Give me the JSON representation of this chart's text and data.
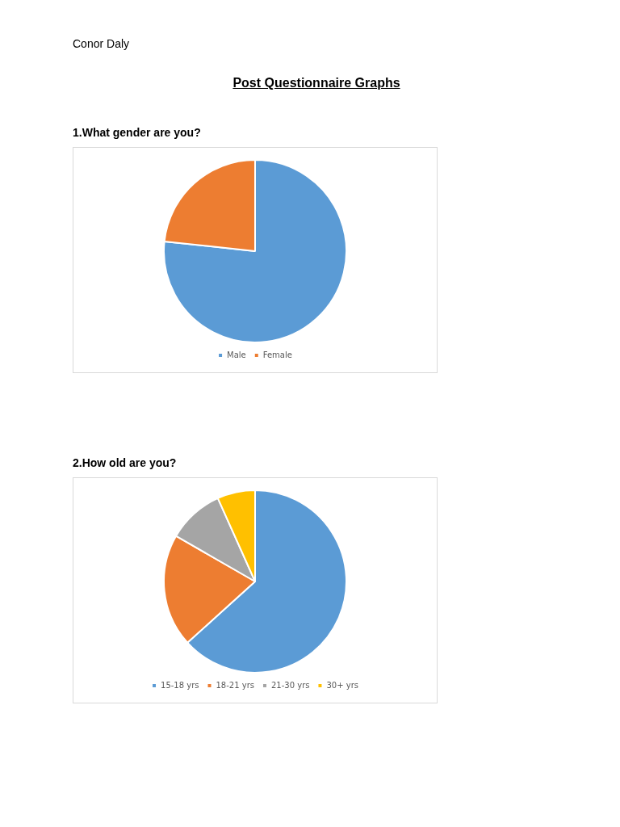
{
  "chart_data": [
    {
      "type": "pie",
      "title": "1.What gender are you?",
      "annotations": [
        "Conor Daly",
        "Post Questionnaire Graphs"
      ],
      "categories": [
        "Male",
        "Female"
      ],
      "values": [
        76.7,
        23.3
      ],
      "colors": [
        "#5b9bd5",
        "#ed7d31"
      ],
      "legend": "bottom"
    },
    {
      "type": "pie",
      "title": "2.How old are you?",
      "categories": [
        "15-18 yrs",
        "18-21 yrs",
        "21-30 yrs",
        "30+ yrs"
      ],
      "values": [
        63.3,
        20,
        10,
        6.7
      ],
      "colors": [
        "#5b9bd5",
        "#ed7d31",
        "#a5a5a5",
        "#ffc000"
      ],
      "legend": "bottom"
    }
  ]
}
